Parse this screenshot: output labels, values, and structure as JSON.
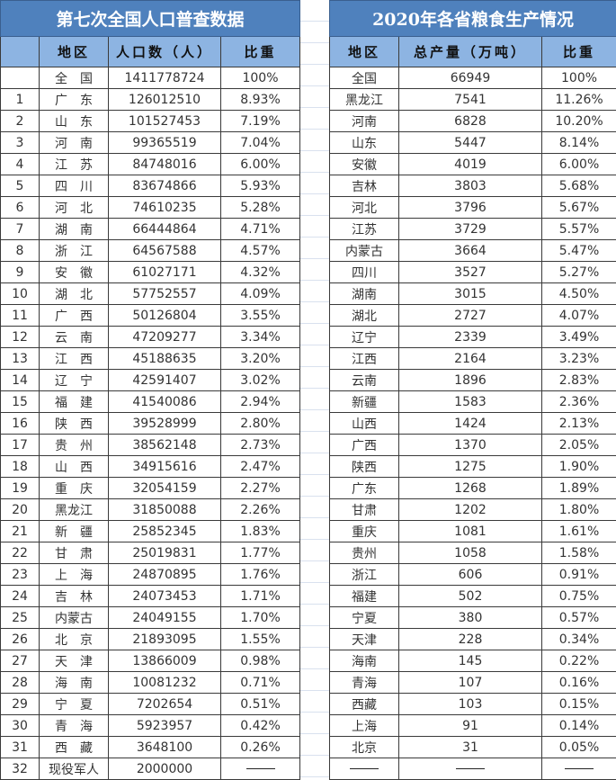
{
  "population": {
    "title": "第七次全国人口普查数据",
    "headers": [
      "",
      "地区",
      "人口数（人）",
      "比重"
    ],
    "rows": [
      [
        "",
        "全　国",
        "1411778724",
        "100%"
      ],
      [
        "1",
        "广　东",
        "126012510",
        "8.93%"
      ],
      [
        "2",
        "山　东",
        "101527453",
        "7.19%"
      ],
      [
        "3",
        "河　南",
        "99365519",
        "7.04%"
      ],
      [
        "4",
        "江　苏",
        "84748016",
        "6.00%"
      ],
      [
        "5",
        "四　川",
        "83674866",
        "5.93%"
      ],
      [
        "6",
        "河　北",
        "74610235",
        "5.28%"
      ],
      [
        "7",
        "湖　南",
        "66444864",
        "4.71%"
      ],
      [
        "8",
        "浙　江",
        "64567588",
        "4.57%"
      ],
      [
        "9",
        "安　徽",
        "61027171",
        "4.32%"
      ],
      [
        "10",
        "湖　北",
        "57752557",
        "4.09%"
      ],
      [
        "11",
        "广　西",
        "50126804",
        "3.55%"
      ],
      [
        "12",
        "云　南",
        "47209277",
        "3.34%"
      ],
      [
        "13",
        "江　西",
        "45188635",
        "3.20%"
      ],
      [
        "14",
        "辽　宁",
        "42591407",
        "3.02%"
      ],
      [
        "15",
        "福　建",
        "41540086",
        "2.94%"
      ],
      [
        "16",
        "陕　西",
        "39528999",
        "2.80%"
      ],
      [
        "17",
        "贵　州",
        "38562148",
        "2.73%"
      ],
      [
        "18",
        "山　西",
        "34915616",
        "2.47%"
      ],
      [
        "19",
        "重　庆",
        "32054159",
        "2.27%"
      ],
      [
        "20",
        "黑龙江",
        "31850088",
        "2.26%"
      ],
      [
        "21",
        "新　疆",
        "25852345",
        "1.83%"
      ],
      [
        "22",
        "甘　肃",
        "25019831",
        "1.77%"
      ],
      [
        "23",
        "上　海",
        "24870895",
        "1.76%"
      ],
      [
        "24",
        "吉　林",
        "24073453",
        "1.71%"
      ],
      [
        "25",
        "内蒙古",
        "24049155",
        "1.70%"
      ],
      [
        "26",
        "北　京",
        "21893095",
        "1.55%"
      ],
      [
        "27",
        "天　津",
        "13866009",
        "0.98%"
      ],
      [
        "28",
        "海　南",
        "10081232",
        "0.71%"
      ],
      [
        "29",
        "宁　夏",
        "7202654",
        "0.51%"
      ],
      [
        "30",
        "青　海",
        "5923957",
        "0.42%"
      ],
      [
        "31",
        "西　藏",
        "3648100",
        "0.26%"
      ],
      [
        "32",
        "现役军人",
        "2000000",
        "——"
      ]
    ]
  },
  "grain": {
    "title": "2020年各省粮食生产情况",
    "headers": [
      "地区",
      "总产量（万吨）",
      "比重"
    ],
    "rows": [
      [
        "全国",
        "66949",
        "100%"
      ],
      [
        "黑龙江",
        "7541",
        "11.26%"
      ],
      [
        "河南",
        "6828",
        "10.20%"
      ],
      [
        "山东",
        "5447",
        "8.14%"
      ],
      [
        "安徽",
        "4019",
        "6.00%"
      ],
      [
        "吉林",
        "3803",
        "5.68%"
      ],
      [
        "河北",
        "3796",
        "5.67%"
      ],
      [
        "江苏",
        "3729",
        "5.57%"
      ],
      [
        "内蒙古",
        "3664",
        "5.47%"
      ],
      [
        "四川",
        "3527",
        "5.27%"
      ],
      [
        "湖南",
        "3015",
        "4.50%"
      ],
      [
        "湖北",
        "2727",
        "4.07%"
      ],
      [
        "辽宁",
        "2339",
        "3.49%"
      ],
      [
        "江西",
        "2164",
        "3.23%"
      ],
      [
        "云南",
        "1896",
        "2.83%"
      ],
      [
        "新疆",
        "1583",
        "2.36%"
      ],
      [
        "山西",
        "1424",
        "2.13%"
      ],
      [
        "广西",
        "1370",
        "2.05%"
      ],
      [
        "陕西",
        "1275",
        "1.90%"
      ],
      [
        "广东",
        "1268",
        "1.89%"
      ],
      [
        "甘肃",
        "1202",
        "1.80%"
      ],
      [
        "重庆",
        "1081",
        "1.61%"
      ],
      [
        "贵州",
        "1058",
        "1.58%"
      ],
      [
        "浙江",
        "606",
        "0.91%"
      ],
      [
        "福建",
        "502",
        "0.75%"
      ],
      [
        "宁夏",
        "380",
        "0.57%"
      ],
      [
        "天津",
        "228",
        "0.34%"
      ],
      [
        "海南",
        "145",
        "0.22%"
      ],
      [
        "青海",
        "107",
        "0.16%"
      ],
      [
        "西藏",
        "103",
        "0.15%"
      ],
      [
        "上海",
        "91",
        "0.14%"
      ],
      [
        "北京",
        "31",
        "0.05%"
      ],
      [
        "——",
        "——",
        "——"
      ]
    ]
  },
  "colors": {
    "title_bg": "#4f81bd",
    "header_bg": "#8db4e2"
  }
}
